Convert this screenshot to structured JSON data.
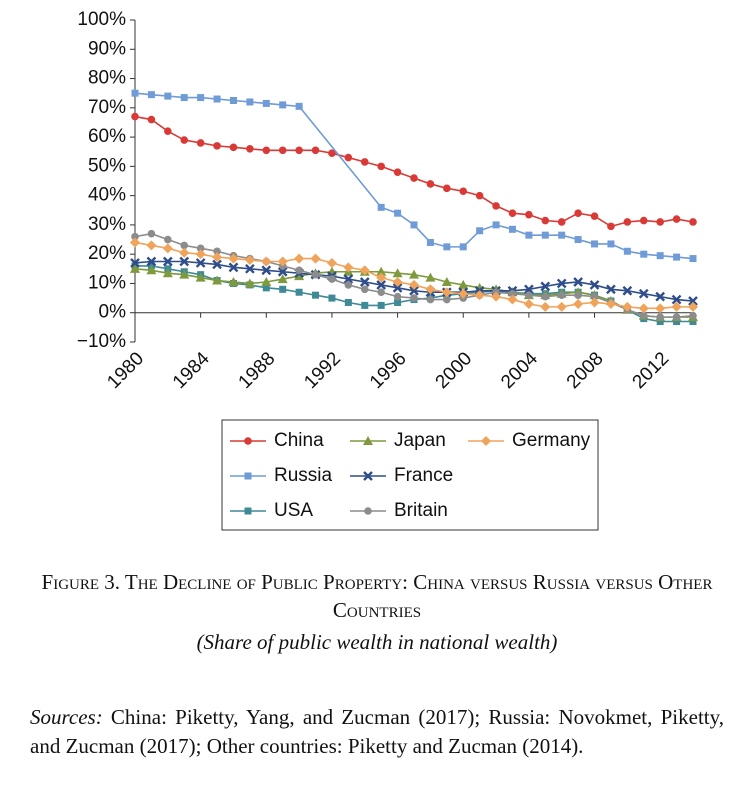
{
  "chart_data": {
    "type": "line",
    "x": [
      1980,
      1981,
      1982,
      1983,
      1984,
      1985,
      1986,
      1987,
      1988,
      1989,
      1990,
      1991,
      1992,
      1993,
      1994,
      1995,
      1996,
      1997,
      1998,
      1999,
      2000,
      2001,
      2002,
      2003,
      2004,
      2005,
      2006,
      2007,
      2008,
      2009,
      2010,
      2011,
      2012,
      2013,
      2014
    ],
    "xlim": [
      1980,
      2014
    ],
    "xticks": [
      1980,
      1984,
      1988,
      1992,
      1996,
      2000,
      2004,
      2008,
      2012
    ],
    "ylim": [
      -10,
      100
    ],
    "yticks": [
      {
        "value": -10,
        "label": "−10%"
      },
      {
        "value": 0,
        "label": "0%"
      },
      {
        "value": 10,
        "label": "10%"
      },
      {
        "value": 20,
        "label": "20%"
      },
      {
        "value": 30,
        "label": "30%"
      },
      {
        "value": 40,
        "label": "40%"
      },
      {
        "value": 50,
        "label": "50%"
      },
      {
        "value": 60,
        "label": "60%"
      },
      {
        "value": 70,
        "label": "70%"
      },
      {
        "value": 80,
        "label": "80%"
      },
      {
        "value": 90,
        "label": "90%"
      },
      {
        "value": 100,
        "label": "100%"
      }
    ],
    "grid": false,
    "series": [
      {
        "name": "China",
        "color": "#d93a36",
        "marker": "circle",
        "values": [
          67,
          66,
          62,
          59,
          58,
          57,
          56.5,
          56,
          55.5,
          55.5,
          55.5,
          55.5,
          54.5,
          53,
          51.5,
          50,
          48,
          46,
          44,
          42.5,
          41.5,
          40,
          36.5,
          34,
          33.5,
          31.5,
          31,
          34,
          33,
          29.5,
          31,
          31.5,
          31,
          32,
          31
        ]
      },
      {
        "name": "Russia",
        "color": "#6f9bd6",
        "marker": "square",
        "x": [
          1980,
          1981,
          1982,
          1983,
          1984,
          1985,
          1986,
          1987,
          1988,
          1989,
          1990,
          1995,
          1996,
          1997,
          1998,
          1999,
          2000,
          2001,
          2002,
          2003,
          2004,
          2005,
          2006,
          2007,
          2008,
          2009,
          2010,
          2011,
          2012,
          2013,
          2014
        ],
        "values": [
          75,
          74.5,
          74,
          73.5,
          73.5,
          73,
          72.5,
          72,
          71.5,
          71,
          70.5,
          36,
          34,
          30,
          24,
          22.5,
          22.5,
          28,
          30,
          28.5,
          26.5,
          26.5,
          26.5,
          25,
          23.5,
          23.5,
          21,
          20,
          19.5,
          19,
          18.5
        ]
      },
      {
        "name": "USA",
        "color": "#3f8a96",
        "marker": "square",
        "values": [
          16,
          16,
          15,
          14,
          13,
          11,
          10,
          9.5,
          8.5,
          8,
          7,
          6,
          5,
          3.5,
          2.5,
          2.5,
          3.5,
          4.5,
          5,
          6,
          6.5,
          7,
          7.5,
          7,
          6.5,
          6.5,
          7,
          7,
          6,
          4,
          1,
          -2,
          -3,
          -3,
          -3
        ]
      },
      {
        "name": "Japan",
        "color": "#7e9a3c",
        "marker": "triangle",
        "values": [
          15,
          14.5,
          13.5,
          13,
          12,
          11,
          10.5,
          10,
          10.5,
          11.5,
          12.5,
          13.5,
          14,
          14,
          14,
          14,
          13.5,
          13,
          12,
          10.5,
          9.5,
          8.5,
          8,
          7,
          6,
          6,
          6.5,
          7,
          6,
          4,
          1,
          -1,
          -1.5,
          -1.5,
          -1.5
        ]
      },
      {
        "name": "France",
        "color": "#2e4d8a",
        "marker": "x",
        "values": [
          17,
          17.5,
          17.5,
          17.5,
          17,
          16.5,
          15.5,
          15,
          14.5,
          14,
          13.5,
          13,
          12.5,
          11.5,
          10.5,
          9.5,
          8.5,
          7.5,
          7,
          7,
          7,
          7.5,
          7.5,
          7.5,
          8,
          9,
          10,
          10.5,
          9.5,
          8,
          7.5,
          6.5,
          5.5,
          4.5,
          4
        ]
      },
      {
        "name": "Britain",
        "color": "#8c8c8c",
        "marker": "circle",
        "values": [
          26,
          27,
          25,
          23,
          22,
          21,
          19.5,
          18.5,
          17.5,
          16,
          14.5,
          13,
          11.5,
          9.5,
          8,
          7,
          5.5,
          5,
          4.5,
          4.5,
          5,
          6,
          7,
          6.5,
          6,
          5.5,
          6,
          6,
          5.5,
          3.5,
          1,
          -1,
          -1.5,
          -1.5,
          -1
        ]
      },
      {
        "name": "Germany",
        "color": "#f0a35a",
        "marker": "diamond",
        "values": [
          24,
          23,
          22,
          20.5,
          20,
          19,
          18.5,
          18,
          17.5,
          17.5,
          18.5,
          18.5,
          17,
          15.5,
          14.5,
          12,
          10.5,
          9.5,
          8,
          7,
          6.5,
          6,
          5.5,
          4.5,
          3,
          2,
          2,
          3,
          3.5,
          3,
          2,
          1.5,
          1.5,
          2,
          2
        ]
      }
    ]
  },
  "caption": {
    "title": "Figure 3. The Decline of Public Property: China versus Russia versus Other Countries",
    "subtitle": "(Share of public wealth in national wealth)",
    "sources_label": "Sources:",
    "sources_text": "China: Piketty, Yang, and Zucman (2017); Russia: Novokmet, Piketty, and Zucman (2017); Other countries: Piketty and Zucman (2014)."
  }
}
